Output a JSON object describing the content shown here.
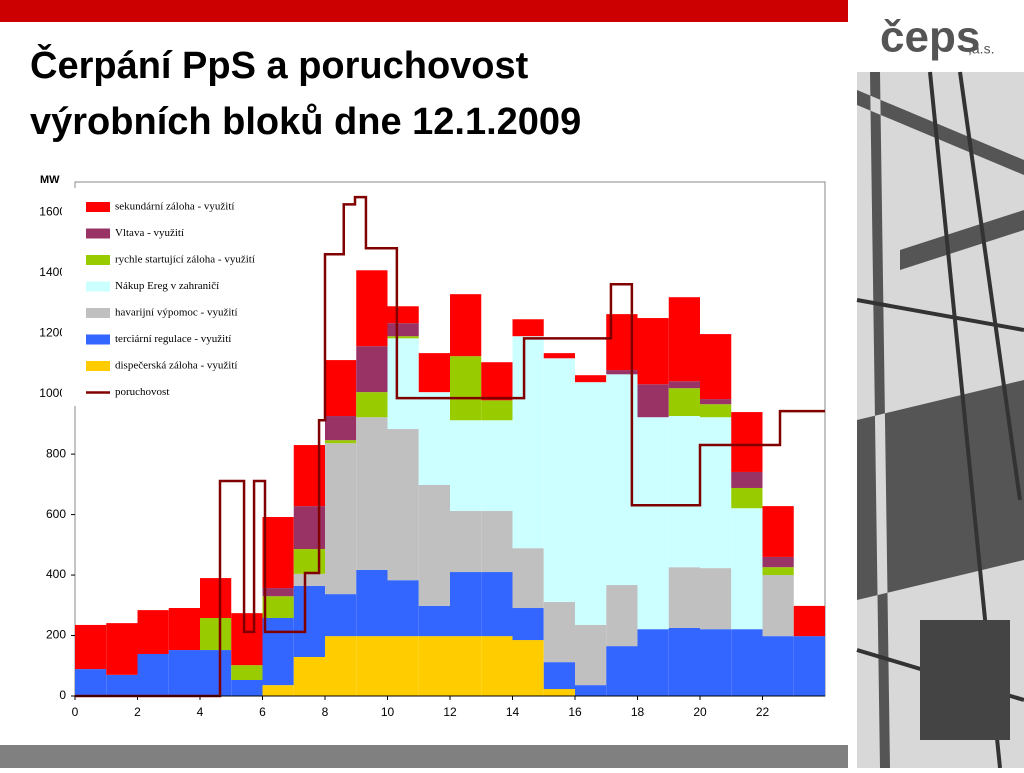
{
  "header": {
    "title_lines": [
      "Čerpání PpS a poruchovost",
      "výrobních bloků dne 12.1.2009"
    ],
    "logo": "čeps",
    "logo_suffix": ",a.s."
  },
  "chart_data": {
    "type": "stacked_bar_line",
    "y_label": "MW",
    "xlim": [
      0,
      24
    ],
    "xticks": [
      0,
      2,
      4,
      6,
      8,
      10,
      12,
      14,
      16,
      18,
      20,
      22
    ],
    "ylim": [
      0,
      1700
    ],
    "yticks": [
      0,
      200,
      400,
      600,
      800,
      1000,
      1200,
      1400,
      1600
    ],
    "series": [
      {
        "name": "sekundární záloha - využití",
        "color": "#ff0000",
        "values": [
          146,
          171,
          145,
          139,
          132,
          172,
          235,
          202,
          185,
          251,
          56,
          129,
          205,
          126,
          56,
          17,
          23,
          185,
          219,
          278,
          215,
          198,
          168,
          100
        ]
      },
      {
        "name": "Vltava - využití",
        "color": "#993366",
        "values": [
          0,
          0,
          0,
          0,
          0,
          0,
          27,
          142,
          80,
          152,
          43,
          0,
          0,
          0,
          0,
          0,
          0,
          14,
          109,
          23,
          17,
          53,
          34,
          0
        ]
      },
      {
        "name": "rychle startující záloha - využití",
        "color": "#99cc00",
        "values": [
          0,
          0,
          0,
          0,
          106,
          49,
          72,
          82,
          10,
          83,
          7,
          0,
          212,
          66,
          0,
          0,
          0,
          0,
          0,
          92,
          43,
          67,
          26,
          0
        ]
      },
      {
        "name": "Nákup Ereg v zahraničí",
        "color": "#ccffff",
        "values": [
          0,
          0,
          0,
          0,
          0,
          0,
          0,
          0,
          0,
          0,
          300,
          307,
          300,
          300,
          701,
          806,
          803,
          697,
          701,
          500,
          499,
          400,
          0,
          0
        ]
      },
      {
        "name": "havarijní výpomoc - využití",
        "color": "#c0c0c0",
        "values": [
          0,
          0,
          0,
          0,
          0,
          0,
          0,
          40,
          499,
          505,
          500,
          400,
          202,
          202,
          198,
          199,
          199,
          202,
          0,
          201,
          202,
          0,
          202,
          0
        ]
      },
      {
        "name": "terciární regulace - využití",
        "color": "#3366ff",
        "values": [
          89,
          70,
          139,
          152,
          152,
          53,
          222,
          235,
          139,
          219,
          185,
          100,
          212,
          212,
          106,
          89,
          36,
          165,
          221,
          225,
          221,
          221,
          198,
          198
        ]
      },
      {
        "name": "dispečerská záloha - využití",
        "color": "#ffcc00",
        "values": [
          0,
          0,
          0,
          0,
          0,
          0,
          36,
          129,
          198,
          198,
          198,
          198,
          198,
          198,
          185,
          23,
          0,
          0,
          0,
          0,
          0,
          0,
          0,
          0
        ]
      }
    ],
    "line": {
      "name": "poruchovost",
      "color": "#800000",
      "x": [
        0,
        4.42,
        4.64,
        4.64,
        5.41,
        5.41,
        5.73,
        5.73,
        6.08,
        6.08,
        7.36,
        7.36,
        7.81,
        7.81,
        8.0,
        8.0,
        8.6,
        8.6,
        8.96,
        8.96,
        9.31,
        9.31,
        10.3,
        10.3,
        14.37,
        14.37,
        17.15,
        17.15,
        17.82,
        17.82,
        20.0,
        20.0,
        22.56,
        22.56,
        24
      ],
      "values": [
        0,
        0,
        0,
        711,
        711,
        212,
        212,
        711,
        711,
        212,
        212,
        407,
        407,
        912,
        912,
        1461,
        1461,
        1626,
        1626,
        1650,
        1650,
        1481,
        1481,
        985,
        985,
        1183,
        1183,
        1362,
        1362,
        631,
        631,
        830,
        830,
        942,
        942
      ]
    }
  }
}
